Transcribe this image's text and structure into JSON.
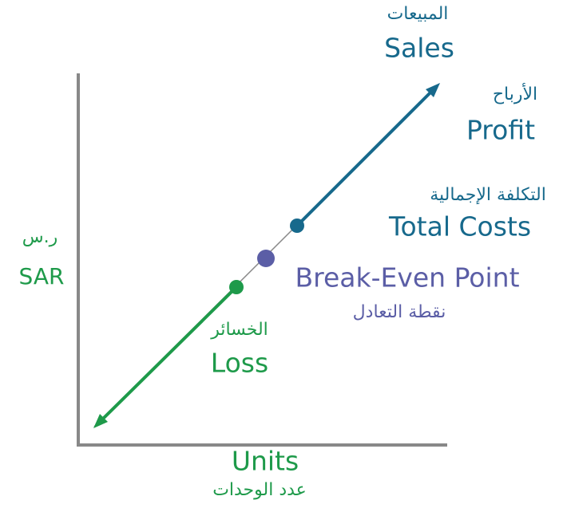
{
  "sales": {
    "ar": "المبيعات",
    "en": "Sales"
  },
  "profit": {
    "ar": "الأرباح",
    "en": "Profit"
  },
  "total_costs": {
    "ar": "التكلفة الإجمالية",
    "en": "Total Costs"
  },
  "y_axis": {
    "ar": "ر.س",
    "en": "SAR"
  },
  "break_even": {
    "en": "Break-Even Point",
    "ar": "نقطة التعادل"
  },
  "loss": {
    "ar": "الخسائر",
    "en": "Loss"
  },
  "x_axis": {
    "en": "Units",
    "ar": "عدد الوحدات"
  }
}
